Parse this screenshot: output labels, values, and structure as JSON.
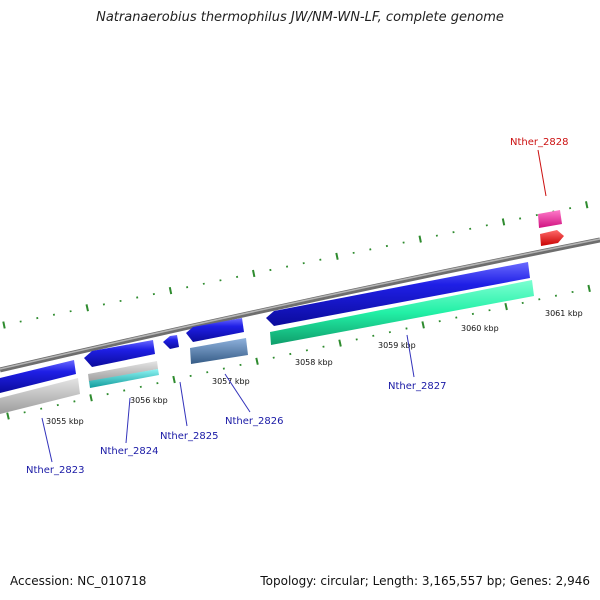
{
  "title": "Natranaerobius thermophilus JW/NM-WN-LF, complete genome",
  "footer": {
    "accession": "Accession: NC_010718",
    "summary": "Topology: circular; Length: 3,165,557 bp; Genes: 2,946"
  },
  "scale_labels": [
    "3055 kbp",
    "3056 kbp",
    "3057 kbp",
    "3058 kbp",
    "3059 kbp",
    "3060 kbp",
    "3061 kbp"
  ],
  "genes": [
    {
      "name": "Nther_2823",
      "color": "#1a1aa6"
    },
    {
      "name": "Nther_2824",
      "color": "#1a1aa6"
    },
    {
      "name": "Nther_2825",
      "color": "#1a1aa6"
    },
    {
      "name": "Nther_2826",
      "color": "#1a1aa6"
    },
    {
      "name": "Nther_2827",
      "color": "#1a1aa6"
    },
    {
      "name": "Nther_2828",
      "color": "#cc1111"
    }
  ],
  "colors": {
    "cds_forward": "#1f1fe6",
    "cds_reverse": "#ff1a1a",
    "rna_pink": "#f21d9c",
    "feature_gray": "#c8c8c8",
    "feature_cyan": "#19d2d2",
    "feature_steel": "#5a84b4",
    "feature_aqua": "#22f0a6",
    "backbone": "#888888",
    "tick_green": "#2e8b2e"
  }
}
